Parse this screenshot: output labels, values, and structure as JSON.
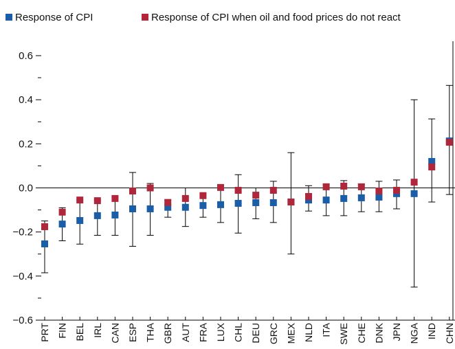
{
  "chart_data": {
    "type": "dot-errorbar",
    "categories": [
      "PRT",
      "FIN",
      "BEL",
      "IRL",
      "CAN",
      "ESP",
      "THA",
      "GBR",
      "AUT",
      "FRA",
      "LUX",
      "CHL",
      "DEU",
      "GRC",
      "MEX",
      "NLD",
      "ITA",
      "SWE",
      "CHE",
      "DNK",
      "JPN",
      "NGA",
      "IND",
      "CHN"
    ],
    "series": [
      {
        "name": "Response of CPI",
        "color": "#1a5ea8",
        "values": [
          -0.254,
          -0.164,
          -0.148,
          -0.126,
          -0.123,
          -0.095,
          -0.095,
          -0.088,
          -0.088,
          -0.08,
          -0.076,
          -0.07,
          -0.067,
          -0.067,
          -0.064,
          -0.055,
          -0.055,
          -0.048,
          -0.045,
          -0.042,
          -0.026,
          -0.026,
          0.12,
          0.213
        ],
        "error_low": [
          -0.385,
          -0.24,
          -0.255,
          -0.215,
          -0.215,
          -0.265,
          -0.215,
          -0.133,
          -0.175,
          -0.133,
          -0.157,
          -0.205,
          -0.14,
          -0.157,
          -0.3,
          -0.105,
          -0.126,
          -0.126,
          -0.108,
          -0.108,
          -0.095,
          -0.45,
          -0.064,
          -0.03
        ],
        "error_high": [
          -0.15,
          -0.09,
          -0.055,
          -0.055,
          -0.045,
          0.07,
          0.02,
          -0.055,
          0,
          -0.03,
          0.008,
          0.06,
          0,
          0.03,
          0.16,
          0.01,
          0.017,
          0.033,
          0.017,
          0.03,
          0.036,
          0.4,
          0.313,
          0.465
        ]
      },
      {
        "name": "Response of CPI when oil and food prices do not react",
        "color": "#b0263a",
        "values": [
          -0.176,
          -0.11,
          -0.055,
          -0.058,
          -0.048,
          -0.014,
          0,
          -0.066,
          -0.048,
          -0.035,
          0.002,
          -0.011,
          -0.033,
          -0.011,
          -0.064,
          -0.039,
          0.005,
          0.008,
          0.005,
          -0.014,
          -0.011,
          0.026,
          0.095,
          0.207
        ]
      }
    ],
    "ylim": [
      -0.6,
      0.6
    ],
    "yticks": [
      {
        "value": -0.6,
        "label": "−0.6"
      },
      {
        "value": -0.4,
        "label": "−0.4"
      },
      {
        "value": -0.2,
        "label": "−0.2"
      },
      {
        "value": 0,
        "label": "0.0"
      },
      0.2,
      0.4,
      0.6
    ],
    "minor_yticks": [
      -0.5,
      -0.3,
      -0.1,
      0.1,
      0.3,
      0.5
    ]
  }
}
